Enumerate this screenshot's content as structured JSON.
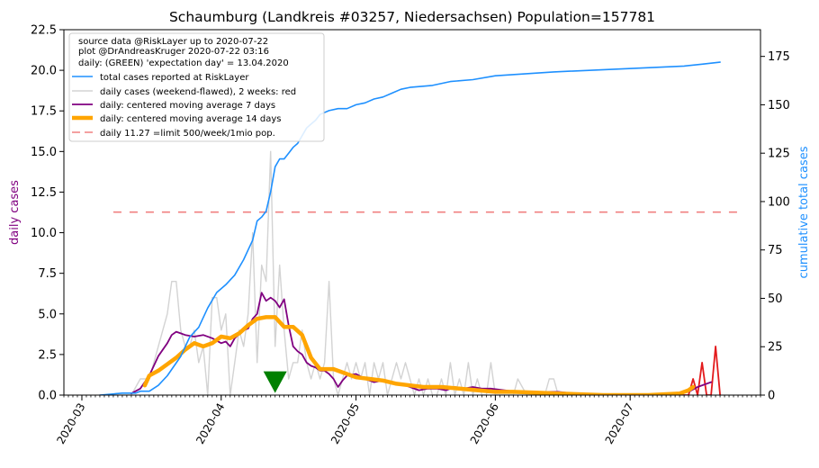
{
  "chart_data": {
    "type": "line",
    "title": "Schaumburg (Landkreis #03257, Niedersachsen) Population=157781",
    "ylabel_left": "daily cases",
    "ylabel_right": "cumulative total cases",
    "ylim_left": [
      0,
      22.5
    ],
    "ylim_right": [
      0,
      188.8
    ],
    "xlim": [
      "2020-02-26",
      "2020-07-30"
    ],
    "x_ticks": [
      "2020-03",
      "2020-04",
      "2020-05",
      "2020-06",
      "2020-07"
    ],
    "y_ticks_left": [
      "0.0",
      "2.5",
      "5.0",
      "7.5",
      "10.0",
      "12.5",
      "15.0",
      "17.5",
      "20.0",
      "22.5"
    ],
    "y_ticks_left_values": [
      0,
      2.5,
      5,
      7.5,
      10,
      12.5,
      15,
      17.5,
      20,
      22.5
    ],
    "y_ticks_right": [
      "0",
      "25",
      "50",
      "75",
      "100",
      "125",
      "150",
      "175"
    ],
    "y_ticks_right_values": [
      0,
      25,
      50,
      75,
      100,
      125,
      150,
      175
    ],
    "legend": {
      "position": "top-left",
      "info_lines": [
        "source data @RiskLayer up to 2020-07-22",
        "plot @DrAndreasKruger 2020-07-22 03:16",
        "daily: (GREEN) 'expectation day' = 13.04.2020"
      ],
      "entries": [
        "total cases reported at RiskLayer",
        "daily cases (weekend-flawed), 2 weeks: red",
        "daily: centered moving average 7 days",
        "daily: centered moving average 14 days",
        "daily 11.27 =limit 500/week/1mio pop."
      ]
    },
    "colors": {
      "total": "#1e90ff",
      "daily": "#d3d3d3",
      "daily_recent": "#e31a1c",
      "ma7": "#800080",
      "ma14": "#ffa500",
      "limit": "#f08080",
      "marker": "#008000",
      "ylabel_left": "#800080",
      "ylabel_right": "#1e90ff"
    },
    "limit_value": 11.27,
    "limit_range": [
      "2020-03-08",
      "2020-07-25"
    ],
    "expectation_day": "2020-04-13",
    "total_cases": [
      [
        "2020-03-05",
        0
      ],
      [
        "2020-03-10",
        1
      ],
      [
        "2020-03-13",
        1
      ],
      [
        "2020-03-14",
        2
      ],
      [
        "2020-03-16",
        2
      ],
      [
        "2020-03-18",
        5
      ],
      [
        "2020-03-20",
        10
      ],
      [
        "2020-03-23",
        20
      ],
      [
        "2020-03-25",
        30
      ],
      [
        "2020-03-27",
        35
      ],
      [
        "2020-03-29",
        45
      ],
      [
        "2020-03-31",
        53
      ],
      [
        "2020-04-02",
        57
      ],
      [
        "2020-04-04",
        62
      ],
      [
        "2020-04-06",
        70
      ],
      [
        "2020-04-07",
        75
      ],
      [
        "2020-04-08",
        80
      ],
      [
        "2020-04-09",
        90
      ],
      [
        "2020-04-10",
        92
      ],
      [
        "2020-04-11",
        95
      ],
      [
        "2020-04-12",
        105
      ],
      [
        "2020-04-13",
        118
      ],
      [
        "2020-04-14",
        122
      ],
      [
        "2020-04-15",
        122
      ],
      [
        "2020-04-16",
        125
      ],
      [
        "2020-04-17",
        128
      ],
      [
        "2020-04-18",
        130
      ],
      [
        "2020-04-19",
        134
      ],
      [
        "2020-04-20",
        138
      ],
      [
        "2020-04-21",
        140
      ],
      [
        "2020-04-22",
        142
      ],
      [
        "2020-04-23",
        145
      ],
      [
        "2020-04-25",
        147
      ],
      [
        "2020-04-27",
        148
      ],
      [
        "2020-04-29",
        148
      ],
      [
        "2020-05-01",
        150
      ],
      [
        "2020-05-03",
        151
      ],
      [
        "2020-05-05",
        153
      ],
      [
        "2020-05-07",
        154
      ],
      [
        "2020-05-09",
        156
      ],
      [
        "2020-05-11",
        158
      ],
      [
        "2020-05-13",
        159
      ],
      [
        "2020-05-18",
        160
      ],
      [
        "2020-05-22",
        162
      ],
      [
        "2020-05-27",
        163
      ],
      [
        "2020-06-01",
        165
      ],
      [
        "2020-06-14",
        167
      ],
      [
        "2020-07-13",
        170
      ],
      [
        "2020-07-17",
        171
      ],
      [
        "2020-07-21",
        172
      ]
    ],
    "daily_cases": [
      [
        "2020-03-05",
        0
      ],
      [
        "2020-03-12",
        0
      ],
      [
        "2020-03-14",
        1
      ],
      [
        "2020-03-16",
        1
      ],
      [
        "2020-03-18",
        3
      ],
      [
        "2020-03-20",
        5
      ],
      [
        "2020-03-21",
        7
      ],
      [
        "2020-03-22",
        7
      ],
      [
        "2020-03-23",
        4
      ],
      [
        "2020-03-24",
        3
      ],
      [
        "2020-03-25",
        3
      ],
      [
        "2020-03-26",
        4
      ],
      [
        "2020-03-27",
        2
      ],
      [
        "2020-03-28",
        3
      ],
      [
        "2020-03-29",
        0
      ],
      [
        "2020-03-30",
        6
      ],
      [
        "2020-03-31",
        6
      ],
      [
        "2020-04-01",
        4
      ],
      [
        "2020-04-02",
        5
      ],
      [
        "2020-04-03",
        0
      ],
      [
        "2020-04-04",
        2
      ],
      [
        "2020-04-05",
        4
      ],
      [
        "2020-04-06",
        3
      ],
      [
        "2020-04-07",
        5
      ],
      [
        "2020-04-08",
        10
      ],
      [
        "2020-04-09",
        2
      ],
      [
        "2020-04-10",
        8
      ],
      [
        "2020-04-11",
        7
      ],
      [
        "2020-04-12",
        15
      ],
      [
        "2020-04-13",
        3
      ],
      [
        "2020-04-14",
        8
      ],
      [
        "2020-04-15",
        4
      ],
      [
        "2020-04-16",
        1
      ],
      [
        "2020-04-17",
        2
      ],
      [
        "2020-04-18",
        2
      ],
      [
        "2020-04-19",
        4
      ],
      [
        "2020-04-20",
        2
      ],
      [
        "2020-04-21",
        1
      ],
      [
        "2020-04-22",
        2
      ],
      [
        "2020-04-23",
        1
      ],
      [
        "2020-04-24",
        2
      ],
      [
        "2020-04-25",
        7
      ],
      [
        "2020-04-26",
        1
      ],
      [
        "2020-04-27",
        0
      ],
      [
        "2020-04-28",
        1
      ],
      [
        "2020-04-29",
        2
      ],
      [
        "2020-04-30",
        1
      ],
      [
        "2020-05-01",
        2
      ],
      [
        "2020-05-02",
        1
      ],
      [
        "2020-05-03",
        2
      ],
      [
        "2020-05-04",
        0
      ],
      [
        "2020-05-05",
        2
      ],
      [
        "2020-05-06",
        1
      ],
      [
        "2020-05-07",
        2
      ],
      [
        "2020-05-08",
        0
      ],
      [
        "2020-05-09",
        1
      ],
      [
        "2020-05-10",
        2
      ],
      [
        "2020-05-11",
        1
      ],
      [
        "2020-05-12",
        2
      ],
      [
        "2020-05-13",
        1
      ],
      [
        "2020-05-14",
        0
      ],
      [
        "2020-05-15",
        1
      ],
      [
        "2020-05-16",
        0
      ],
      [
        "2020-05-17",
        1
      ],
      [
        "2020-05-18",
        0
      ],
      [
        "2020-05-19",
        0
      ],
      [
        "2020-05-20",
        1
      ],
      [
        "2020-05-21",
        0
      ],
      [
        "2020-05-22",
        2
      ],
      [
        "2020-05-23",
        0
      ],
      [
        "2020-05-24",
        1
      ],
      [
        "2020-05-25",
        0
      ],
      [
        "2020-05-26",
        2
      ],
      [
        "2020-05-27",
        0
      ],
      [
        "2020-05-28",
        1
      ],
      [
        "2020-05-29",
        0
      ],
      [
        "2020-05-30",
        0
      ],
      [
        "2020-05-31",
        2
      ],
      [
        "2020-06-01",
        0
      ],
      [
        "2020-06-05",
        0
      ],
      [
        "2020-06-06",
        1
      ],
      [
        "2020-06-08",
        0
      ],
      [
        "2020-06-12",
        0
      ],
      [
        "2020-06-13",
        1
      ],
      [
        "2020-06-14",
        1
      ],
      [
        "2020-06-15",
        0
      ],
      [
        "2020-07-08",
        0
      ]
    ],
    "daily_recent": [
      [
        "2020-07-08",
        0
      ],
      [
        "2020-07-14",
        0
      ],
      [
        "2020-07-15",
        1
      ],
      [
        "2020-07-16",
        0
      ],
      [
        "2020-07-17",
        2
      ],
      [
        "2020-07-18",
        0
      ],
      [
        "2020-07-19",
        0
      ],
      [
        "2020-07-20",
        3
      ],
      [
        "2020-07-21",
        0
      ]
    ],
    "ma7": [
      [
        "2020-03-12",
        0.1
      ],
      [
        "2020-03-14",
        0.4
      ],
      [
        "2020-03-16",
        1.2
      ],
      [
        "2020-03-18",
        2.4
      ],
      [
        "2020-03-20",
        3.2
      ],
      [
        "2020-03-21",
        3.7
      ],
      [
        "2020-03-22",
        3.9
      ],
      [
        "2020-03-23",
        3.8
      ],
      [
        "2020-03-24",
        3.7
      ],
      [
        "2020-03-26",
        3.6
      ],
      [
        "2020-03-28",
        3.7
      ],
      [
        "2020-03-30",
        3.5
      ],
      [
        "2020-04-01",
        3.2
      ],
      [
        "2020-04-02",
        3.3
      ],
      [
        "2020-04-03",
        3.0
      ],
      [
        "2020-04-04",
        3.5
      ],
      [
        "2020-04-06",
        4.0
      ],
      [
        "2020-04-07",
        4.1
      ],
      [
        "2020-04-08",
        4.7
      ],
      [
        "2020-04-09",
        5.0
      ],
      [
        "2020-04-10",
        6.3
      ],
      [
        "2020-04-11",
        5.8
      ],
      [
        "2020-04-12",
        6.0
      ],
      [
        "2020-04-13",
        5.8
      ],
      [
        "2020-04-14",
        5.4
      ],
      [
        "2020-04-15",
        5.9
      ],
      [
        "2020-04-16",
        4.3
      ],
      [
        "2020-04-17",
        3.0
      ],
      [
        "2020-04-18",
        2.7
      ],
      [
        "2020-04-19",
        2.5
      ],
      [
        "2020-04-20",
        2.0
      ],
      [
        "2020-04-21",
        1.8
      ],
      [
        "2020-04-22",
        1.7
      ],
      [
        "2020-04-23",
        1.5
      ],
      [
        "2020-04-24",
        1.5
      ],
      [
        "2020-04-25",
        1.3
      ],
      [
        "2020-04-26",
        1.0
      ],
      [
        "2020-04-27",
        0.5
      ],
      [
        "2020-04-28",
        0.9
      ],
      [
        "2020-04-29",
        1.2
      ],
      [
        "2020-05-01",
        1.3
      ],
      [
        "2020-05-03",
        1.0
      ],
      [
        "2020-05-05",
        0.8
      ],
      [
        "2020-05-07",
        0.9
      ],
      [
        "2020-05-09",
        0.8
      ],
      [
        "2020-05-11",
        0.7
      ],
      [
        "2020-05-13",
        0.5
      ],
      [
        "2020-05-15",
        0.3
      ],
      [
        "2020-05-17",
        0.4
      ],
      [
        "2020-05-19",
        0.4
      ],
      [
        "2020-05-21",
        0.3
      ],
      [
        "2020-05-23",
        0.5
      ],
      [
        "2020-05-25",
        0.4
      ],
      [
        "2020-05-27",
        0.5
      ],
      [
        "2020-05-29",
        0.4
      ],
      [
        "2020-05-31",
        0.4
      ],
      [
        "2020-06-03",
        0.3
      ],
      [
        "2020-06-06",
        0.2
      ],
      [
        "2020-06-09",
        0.1
      ],
      [
        "2020-06-12",
        0.2
      ],
      [
        "2020-06-15",
        0.2
      ],
      [
        "2020-06-20",
        0.05
      ],
      [
        "2020-07-01",
        0.0
      ],
      [
        "2020-07-10",
        0.0
      ],
      [
        "2020-07-14",
        0.2
      ],
      [
        "2020-07-16",
        0.5
      ],
      [
        "2020-07-18",
        0.7
      ],
      [
        "2020-07-19",
        0.8
      ]
    ],
    "ma14": [
      [
        "2020-03-15",
        0.6
      ],
      [
        "2020-03-16",
        1.2
      ],
      [
        "2020-03-18",
        1.5
      ],
      [
        "2020-03-20",
        1.9
      ],
      [
        "2020-03-22",
        2.3
      ],
      [
        "2020-03-24",
        2.8
      ],
      [
        "2020-03-26",
        3.2
      ],
      [
        "2020-03-28",
        3.0
      ],
      [
        "2020-03-30",
        3.2
      ],
      [
        "2020-04-01",
        3.6
      ],
      [
        "2020-04-03",
        3.5
      ],
      [
        "2020-04-05",
        3.8
      ],
      [
        "2020-04-07",
        4.3
      ],
      [
        "2020-04-09",
        4.7
      ],
      [
        "2020-04-11",
        4.8
      ],
      [
        "2020-04-13",
        4.8
      ],
      [
        "2020-04-15",
        4.2
      ],
      [
        "2020-04-17",
        4.2
      ],
      [
        "2020-04-19",
        3.7
      ],
      [
        "2020-04-21",
        2.3
      ],
      [
        "2020-04-23",
        1.6
      ],
      [
        "2020-04-26",
        1.6
      ],
      [
        "2020-04-28",
        1.4
      ],
      [
        "2020-05-01",
        1.1
      ],
      [
        "2020-05-04",
        1.0
      ],
      [
        "2020-05-07",
        0.9
      ],
      [
        "2020-05-10",
        0.7
      ],
      [
        "2020-05-13",
        0.6
      ],
      [
        "2020-05-16",
        0.5
      ],
      [
        "2020-05-20",
        0.5
      ],
      [
        "2020-05-24",
        0.4
      ],
      [
        "2020-05-28",
        0.3
      ],
      [
        "2020-06-01",
        0.2
      ],
      [
        "2020-06-05",
        0.2
      ],
      [
        "2020-06-10",
        0.15
      ],
      [
        "2020-06-15",
        0.1
      ],
      [
        "2020-06-20",
        0.05
      ],
      [
        "2020-06-25",
        0.0
      ],
      [
        "2020-07-05",
        0.0
      ],
      [
        "2020-07-12",
        0.1
      ],
      [
        "2020-07-14",
        0.3
      ],
      [
        "2020-07-15",
        0.5
      ]
    ]
  }
}
